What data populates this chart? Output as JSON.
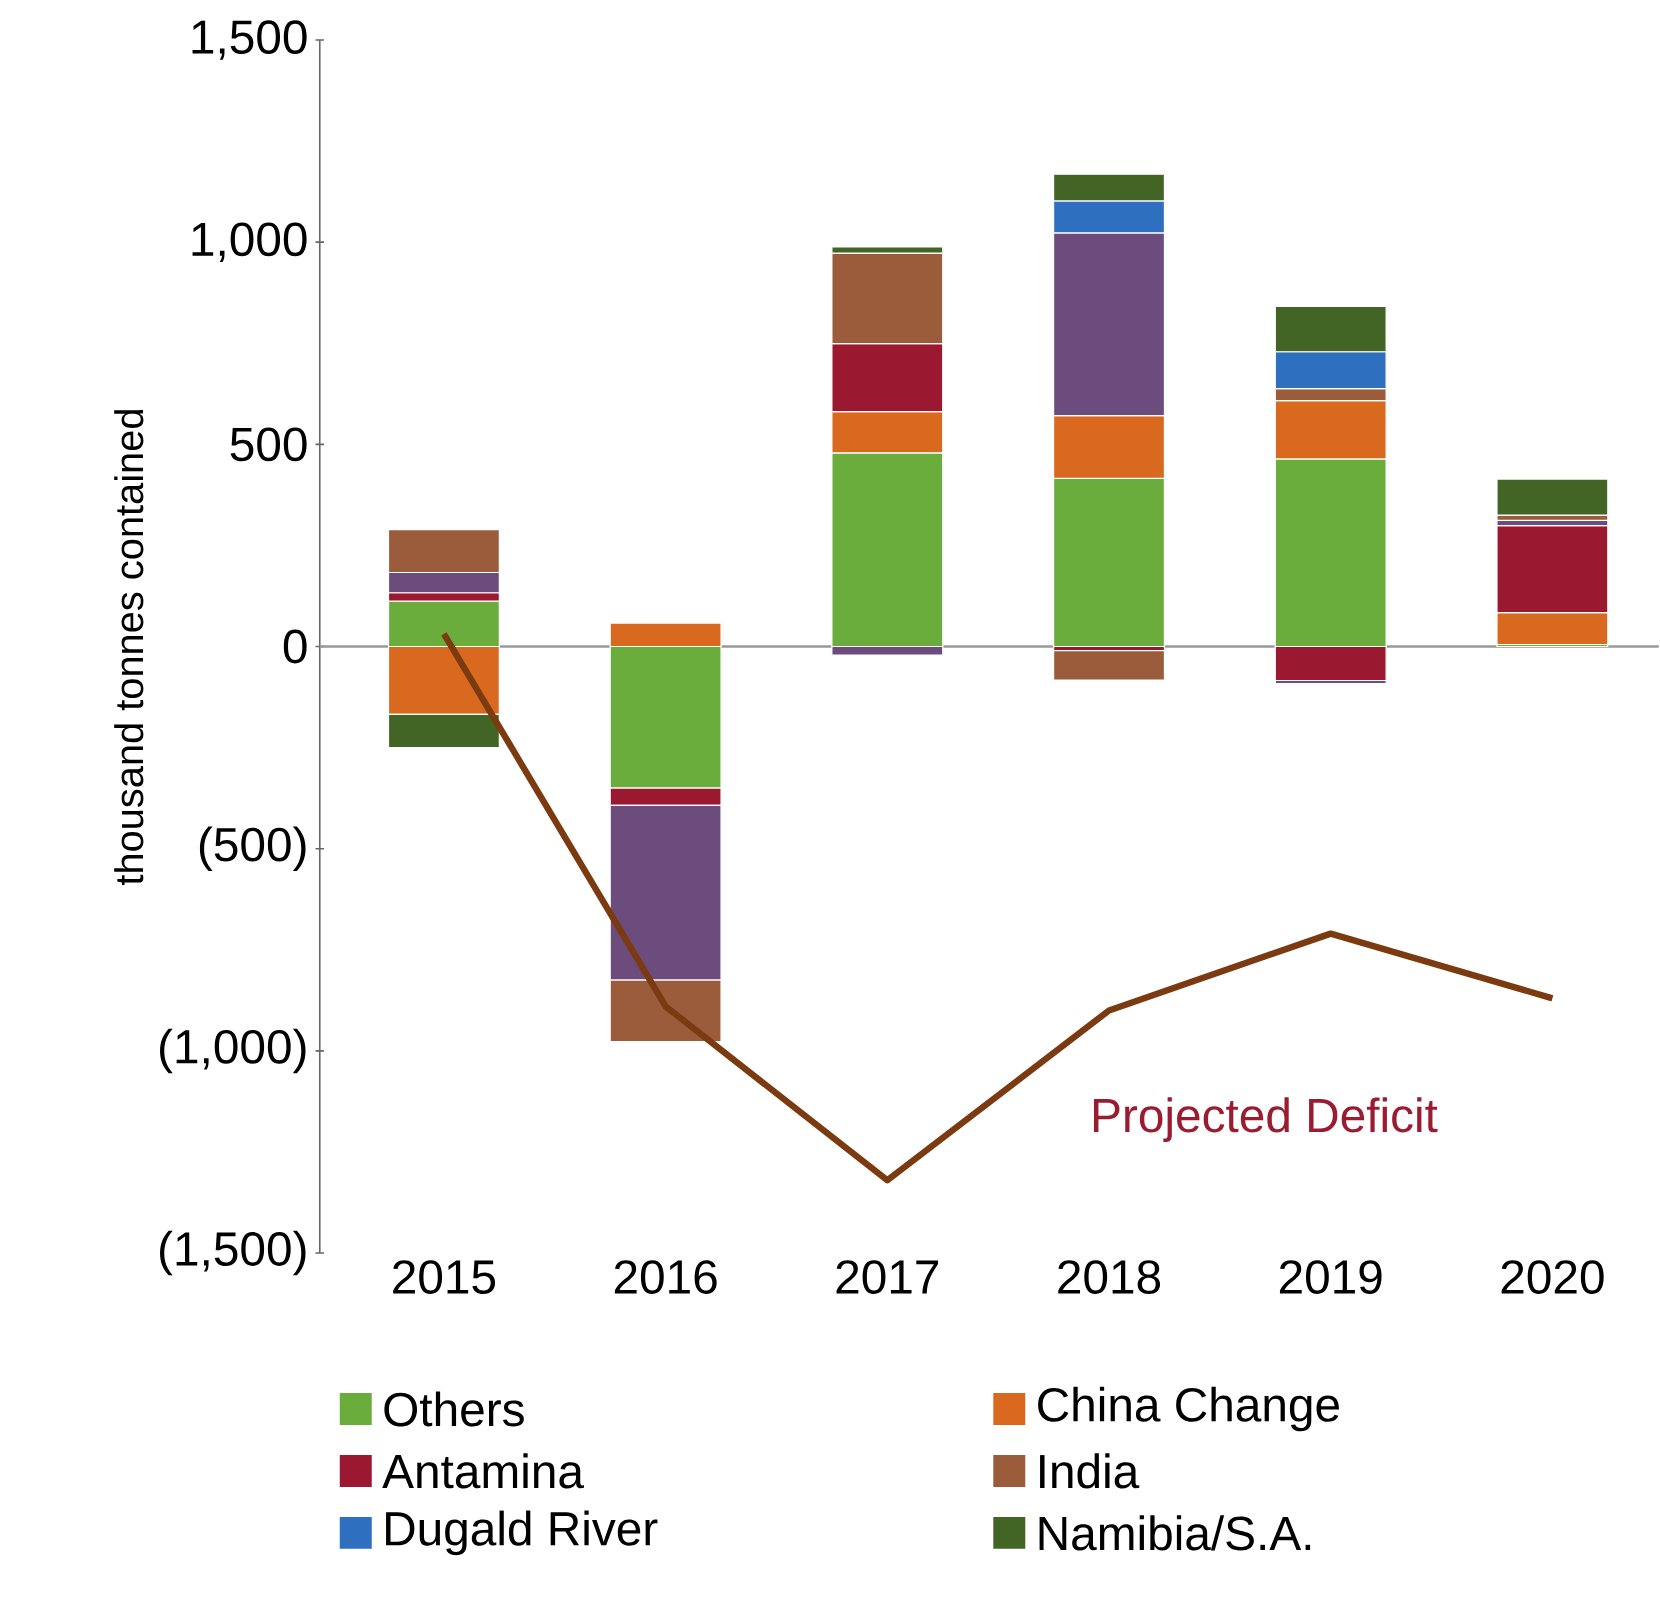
{
  "chart_data": {
    "type": "bar",
    "stacked": true,
    "categories": [
      "2015",
      "2016",
      "2017",
      "2018",
      "2019",
      "2020"
    ],
    "ylabel": "thousand tonnes contained",
    "ylim": [
      -1500,
      1500
    ],
    "yticks": [
      {
        "value": -1500,
        "label": "(1,500)"
      },
      {
        "value": -1000,
        "label": "(1,000)"
      },
      {
        "value": -500,
        "label": "(500)"
      },
      0,
      500,
      {
        "value": 1000,
        "label": "1,000"
      },
      {
        "value": 1500,
        "label": "1,500"
      }
    ],
    "series": [
      {
        "name": "Others",
        "color": "#6aad3d",
        "values": [
          112,
          -350,
          479,
          416,
          464,
          5
        ]
      },
      {
        "name": "China Change",
        "color": "#d9691f",
        "values": [
          -168,
          58,
          102,
          155,
          144,
          79
        ]
      },
      {
        "name": "Antamina",
        "color": "#9a1830",
        "values": [
          21,
          -43,
          168,
          -10,
          -84,
          215
        ]
      },
      {
        "color": "#6b4c7c",
        "values": [
          50,
          -432,
          -21,
          452,
          -8,
          13
        ]
      },
      {
        "name": "India",
        "color": "#9a5c3a",
        "values": [
          106,
          -152,
          224,
          -73,
          30,
          13
        ]
      },
      {
        "name": "Dugald River",
        "color": "#2e6fbf",
        "values": [
          0,
          0,
          0,
          79,
          91,
          0
        ]
      },
      {
        "name": "Namibia/S.A.",
        "color": "#426425",
        "values": [
          -82,
          0,
          15,
          66,
          112,
          89
        ]
      },
      {
        "type": "line",
        "color": "#7b3a10",
        "values": [
          31,
          -890,
          -1320,
          -900,
          -710,
          -870
        ]
      }
    ],
    "annotations": [
      "Projected Deficit"
    ],
    "legend": "bottom"
  }
}
